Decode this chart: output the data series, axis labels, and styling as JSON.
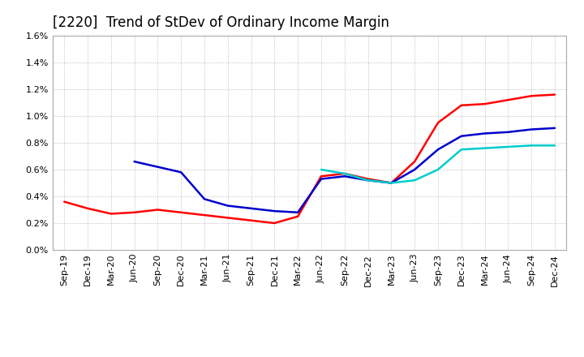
{
  "title": "[2220]  Trend of StDev of Ordinary Income Margin",
  "x_labels": [
    "Sep-19",
    "Dec-19",
    "Mar-20",
    "Jun-20",
    "Sep-20",
    "Dec-20",
    "Mar-21",
    "Jun-21",
    "Sep-21",
    "Dec-21",
    "Mar-22",
    "Jun-22",
    "Sep-22",
    "Dec-22",
    "Mar-23",
    "Jun-23",
    "Sep-23",
    "Dec-23",
    "Mar-24",
    "Jun-24",
    "Sep-24",
    "Dec-24"
  ],
  "ylim": [
    0.0,
    0.016
  ],
  "yticks": [
    0.0,
    0.002,
    0.004,
    0.006,
    0.008,
    0.01,
    0.012,
    0.014,
    0.016
  ],
  "ytick_labels": [
    "0.0%",
    "0.2%",
    "0.4%",
    "0.6%",
    "0.8%",
    "1.0%",
    "1.2%",
    "1.4%",
    "1.6%"
  ],
  "series": {
    "3 Years": {
      "color": "#ff0000",
      "linewidth": 1.8,
      "data": [
        0.0036,
        0.0031,
        0.0027,
        0.0028,
        0.003,
        0.0028,
        0.0026,
        0.0024,
        0.0022,
        0.002,
        0.0025,
        0.0055,
        0.0057,
        0.0053,
        0.005,
        0.0066,
        0.0095,
        0.0108,
        0.0109,
        0.0112,
        0.0115,
        0.0116
      ]
    },
    "5 Years": {
      "color": "#0000cc",
      "linewidth": 1.8,
      "data": [
        null,
        null,
        null,
        0.0066,
        0.0062,
        0.0058,
        0.0038,
        0.0033,
        0.0031,
        0.0029,
        0.0028,
        0.0053,
        0.0055,
        0.0052,
        0.005,
        0.006,
        0.0075,
        0.0085,
        0.0087,
        0.0088,
        0.009,
        0.0091
      ]
    },
    "7 Years": {
      "color": "#00cccc",
      "linewidth": 1.8,
      "data": [
        null,
        null,
        null,
        null,
        null,
        null,
        null,
        null,
        null,
        null,
        null,
        0.006,
        0.0057,
        0.0052,
        0.005,
        0.0052,
        0.006,
        0.0075,
        0.0076,
        0.0077,
        0.0078,
        0.0078
      ]
    },
    "10 Years": {
      "color": "#008000",
      "linewidth": 1.8,
      "data": [
        null,
        null,
        null,
        null,
        null,
        null,
        null,
        null,
        null,
        null,
        null,
        null,
        null,
        null,
        null,
        null,
        null,
        null,
        null,
        null,
        null,
        null
      ]
    }
  },
  "background_color": "#ffffff",
  "plot_bg_color": "#ffffff",
  "grid_color": "#b0b0b0",
  "title_fontsize": 12,
  "tick_fontsize": 8,
  "legend_fontsize": 9
}
